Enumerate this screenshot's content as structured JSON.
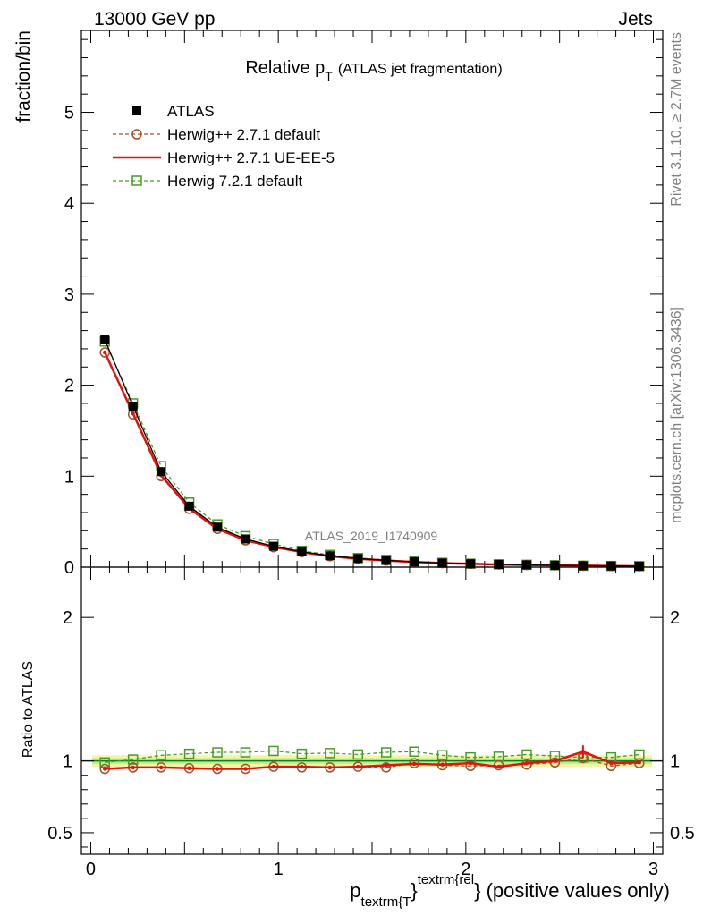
{
  "header": {
    "left": "13000 GeV pp",
    "right": "Jets"
  },
  "side_text": {
    "rivet": "Rivet 3.1.10, ≥ 2.7M events",
    "mcplots": "mcplots.cern.ch [arXiv:1306.3436]"
  },
  "watermark": "ATLAS_2019_I1740909",
  "chart_data": [
    {
      "type": "line",
      "title": "Relative p_T (ATLAS jet fragmentation)",
      "title_main": "Relative p",
      "title_sub": "T",
      "title_paren": "(ATLAS jet fragmentation)",
      "ylabel": "fraction/bin",
      "xlim": [
        -0.05,
        3.05
      ],
      "ylim": [
        0,
        5.9
      ],
      "yticks": [
        0,
        1,
        2,
        3,
        4,
        5
      ],
      "legend_position": "top-left",
      "x": [
        0.075,
        0.225,
        0.375,
        0.525,
        0.675,
        0.825,
        0.975,
        1.125,
        1.275,
        1.425,
        1.575,
        1.725,
        1.875,
        2.025,
        2.175,
        2.325,
        2.475,
        2.625,
        2.775,
        2.925
      ],
      "series": [
        {
          "name": "ATLAS",
          "color": "#000000",
          "style": "data",
          "values": [
            2.5,
            1.77,
            1.05,
            0.67,
            0.44,
            0.31,
            0.23,
            0.17,
            0.125,
            0.095,
            0.075,
            0.058,
            0.045,
            0.037,
            0.03,
            0.025,
            0.02,
            0.016,
            0.013,
            0.01
          ]
        },
        {
          "name": "Herwig++ 2.7.1 default",
          "color": "#a0522d",
          "style": "circle-dashed",
          "values": [
            2.36,
            1.68,
            1.0,
            0.64,
            0.42,
            0.295,
            0.22,
            0.165,
            0.12,
            0.091,
            0.072,
            0.057,
            0.044,
            0.036,
            0.029,
            0.024,
            0.02,
            0.016,
            0.012,
            0.01
          ]
        },
        {
          "name": "Herwig++ 2.7.1 UE-EE-5",
          "color": "#e4120f",
          "style": "solid",
          "values": [
            2.36,
            1.69,
            1.01,
            0.645,
            0.42,
            0.296,
            0.222,
            0.165,
            0.12,
            0.092,
            0.073,
            0.057,
            0.044,
            0.036,
            0.029,
            0.024,
            0.02,
            0.017,
            0.013,
            0.01
          ]
        },
        {
          "name": "Herwig 7.2.1 default",
          "color": "#4a9a2a",
          "style": "square-dashed",
          "values": [
            2.48,
            1.8,
            1.11,
            0.71,
            0.47,
            0.34,
            0.255,
            0.18,
            0.135,
            0.1,
            0.08,
            0.062,
            0.047,
            0.038,
            0.031,
            0.026,
            0.021,
            0.016,
            0.013,
            0.011
          ]
        }
      ]
    },
    {
      "type": "line",
      "ylabel": "Ratio to ATLAS",
      "xlabel": "p_{textrm{T}}^{textrm{rel}} (positive values only)",
      "xlabel_main": "p",
      "xlabel_sub": "textrm{T",
      "xlabel_close1": "}",
      "xlabel_sup": "textrm{rel",
      "xlabel_tail": "} (positive values only)",
      "xlim": [
        -0.05,
        3.05
      ],
      "ylim": [
        0.35,
        2.35
      ],
      "ytick_labels": [
        {
          "value": 0.5,
          "label": "0.5"
        },
        {
          "value": 1,
          "label": "1"
        },
        {
          "value": 2,
          "label": "2"
        }
      ],
      "xtick_labels": [
        {
          "value": 0,
          "label": "0"
        },
        {
          "value": 1,
          "label": "1"
        },
        {
          "value": 2,
          "label": "2"
        },
        {
          "value": 3,
          "label": "3"
        }
      ],
      "band_outer": [
        0.96,
        1.04
      ],
      "band_inner": [
        0.98,
        1.02
      ],
      "series": [
        {
          "name": "Herwig++ 2.7.1 default",
          "color": "#a0522d",
          "style": "circle-dashed",
          "values": [
            0.945,
            0.955,
            0.955,
            0.95,
            0.945,
            0.945,
            0.96,
            0.955,
            0.955,
            0.96,
            0.955,
            0.985,
            0.97,
            0.965,
            0.97,
            0.975,
            0.99,
            1.02,
            0.965,
            0.985
          ]
        },
        {
          "name": "Herwig++ 2.7.1 UE-EE-5",
          "color": "#e4120f",
          "style": "solid",
          "values": [
            0.945,
            0.955,
            0.955,
            0.95,
            0.945,
            0.945,
            0.96,
            0.96,
            0.955,
            0.96,
            0.97,
            0.98,
            0.975,
            0.985,
            0.96,
            0.985,
            1.0,
            1.065,
            0.985,
            0.99
          ]
        },
        {
          "name": "Herwig 7.2.1 default",
          "color": "#4a9a2a",
          "style": "square-dashed",
          "values": [
            0.99,
            1.01,
            1.04,
            1.05,
            1.06,
            1.06,
            1.07,
            1.05,
            1.055,
            1.045,
            1.06,
            1.065,
            1.04,
            1.025,
            1.03,
            1.045,
            1.035,
            1.025,
            1.025,
            1.045
          ]
        }
      ]
    }
  ]
}
